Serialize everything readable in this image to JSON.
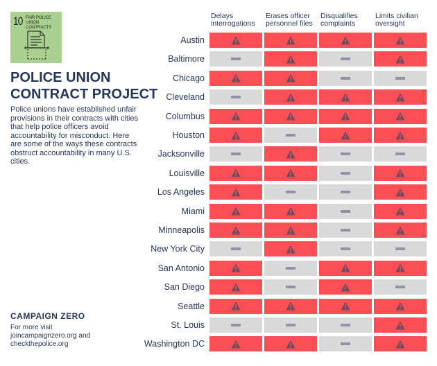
{
  "logo": {
    "number": "10",
    "text": "FAIR POLICE UNION CONTRACTS"
  },
  "title": "POLICE UNION CONTRACT PROJECT",
  "description": "Police unions have established unfair provisions in their contracts with cities that help police officers avoid accountability for misconduct. Here are some of the ways these contracts obstruct accountability in many U.S. cities.",
  "org": "CAMPAIGN ZERO",
  "visit": "For more visit joincampaignzero.org and checkthepolice.org",
  "colors": {
    "yes": "#fc4f55",
    "no": "#d9d9d9",
    "icon": "#6b4d62",
    "text": "#27375a"
  },
  "chart_data": {
    "type": "table",
    "legend": {
      "1": "warning-icon (provision present)",
      "0": "dash (not present)"
    },
    "columns": [
      "Delays interrogations",
      "Erases officer personnel files",
      "Disqualifies complaints",
      "Limits civilian oversight"
    ],
    "rows": [
      {
        "city": "Austin",
        "values": [
          1,
          1,
          1,
          1
        ]
      },
      {
        "city": "Baltimore",
        "values": [
          0,
          1,
          0,
          1
        ]
      },
      {
        "city": "Chicago",
        "values": [
          1,
          1,
          0,
          0
        ]
      },
      {
        "city": "Cleveland",
        "values": [
          0,
          1,
          1,
          1
        ]
      },
      {
        "city": "Columbus",
        "values": [
          1,
          1,
          1,
          1
        ]
      },
      {
        "city": "Houston",
        "values": [
          1,
          0,
          1,
          1
        ]
      },
      {
        "city": "Jacksonville",
        "values": [
          0,
          1,
          0,
          0
        ]
      },
      {
        "city": "Louisville",
        "values": [
          1,
          1,
          0,
          1
        ]
      },
      {
        "city": "Los Angeles",
        "values": [
          1,
          0,
          0,
          1
        ]
      },
      {
        "city": "Miami",
        "values": [
          1,
          1,
          0,
          1
        ]
      },
      {
        "city": "Minneapolis",
        "values": [
          1,
          1,
          0,
          1
        ]
      },
      {
        "city": "New York City",
        "values": [
          0,
          1,
          0,
          0
        ]
      },
      {
        "city": "San Antonio",
        "values": [
          1,
          0,
          1,
          1
        ]
      },
      {
        "city": "San Diego",
        "values": [
          1,
          0,
          1,
          0
        ]
      },
      {
        "city": "Seattle",
        "values": [
          1,
          1,
          1,
          1
        ]
      },
      {
        "city": "St. Louis",
        "values": [
          0,
          0,
          0,
          1
        ]
      },
      {
        "city": "Washington DC",
        "values": [
          1,
          1,
          0,
          1
        ]
      }
    ]
  }
}
